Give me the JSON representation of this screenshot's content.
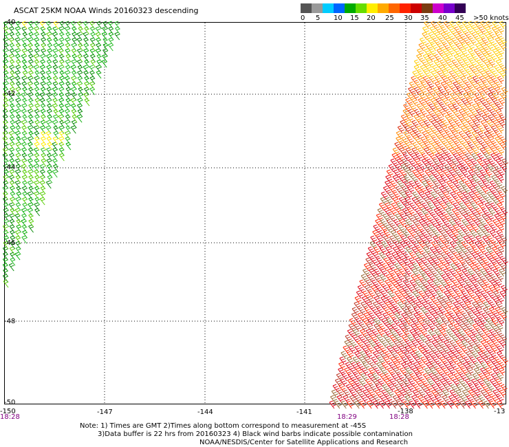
{
  "title": "ASCAT 25KM NOAA Winds 20160323 descending",
  "legend": {
    "colors": [
      "#555555",
      "#9a9a9a",
      "#00ccff",
      "#0066ff",
      "#00aa00",
      "#66dd00",
      "#ffee00",
      "#ffaa00",
      "#ff6600",
      "#ff2200",
      "#cc0000",
      "#7a3b10",
      "#cc00cc",
      "#7700cc",
      "#330055"
    ],
    "labels": [
      "0",
      "5",
      "10",
      "15",
      "20",
      "25",
      "30",
      "35",
      "40",
      "45",
      ">50 knots"
    ]
  },
  "axes": {
    "x_ticks": [
      "-150",
      "-147",
      "-144",
      "-141",
      "-138",
      "-13"
    ],
    "y_ticks": [
      "-40",
      "-42",
      "-44",
      "-46",
      "-48",
      "-50"
    ]
  },
  "times": [
    "18:28",
    "18:29",
    "18:28"
  ],
  "notes": {
    "line1": "Note: 1) Times are GMT 2)Times along bottom correspond to measurement at -45S",
    "line2": "3)Data buffer is 22 hrs from 20160323 4) Black wind barbs indicate possible contamination",
    "line3": "NOAA/NESDIS/Center for Satellite Applications and Research"
  }
}
